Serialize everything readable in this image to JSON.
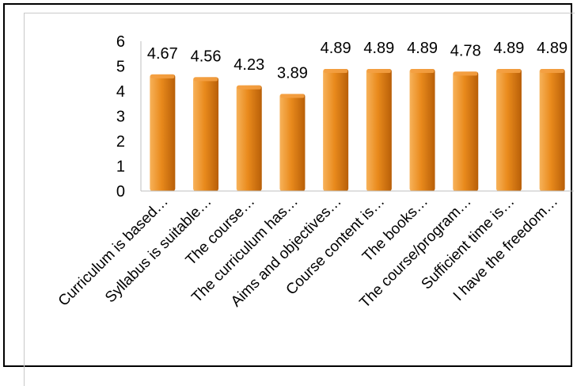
{
  "chart_data": {
    "type": "bar",
    "categories": [
      "Curriculum is based…",
      "Syllabus is suitable…",
      "The course…",
      "The curriculum has…",
      "Aims and objectives…",
      "Course content is…",
      "The books…",
      "The course/program…",
      "Sufficient time is…",
      "I have the freedom…"
    ],
    "values": [
      4.67,
      4.56,
      4.23,
      3.89,
      4.89,
      4.89,
      4.89,
      4.78,
      4.89,
      4.89
    ],
    "value_labels": [
      "4.67",
      "4.56",
      "4.23",
      "3.89",
      "4.89",
      "4.89",
      "4.89",
      "4.78",
      "4.89",
      "4.89"
    ],
    "ylim": [
      0,
      6
    ],
    "yticks": [
      "0",
      "1",
      "2",
      "3",
      "4",
      "5",
      "6"
    ],
    "grid": false,
    "legend": "none",
    "colors": {
      "bar_light": "#f7b25a",
      "bar_mid": "#e98a1c",
      "bar_dark": "#b85f08",
      "bar_top": "#f4a043",
      "axis": "#bfbfbf"
    }
  }
}
